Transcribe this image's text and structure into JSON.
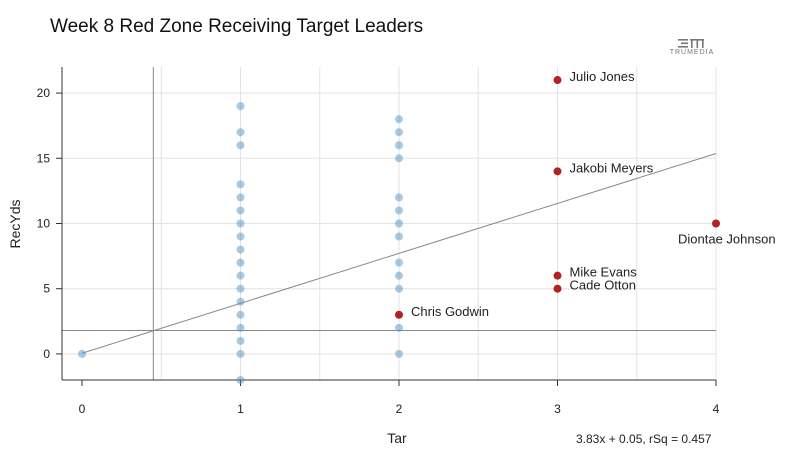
{
  "title": "Week 8 Red Zone Receiving Target Leaders",
  "brand": "TRUMEDIA",
  "fit_label": "3.83x + 0.05, rSq = 0.457",
  "colors": {
    "highlight": "#b22222",
    "other": "#4f93c6",
    "grid": "#e3e3e3",
    "axis": "#333333",
    "line": "#888888"
  },
  "chart_data": {
    "type": "scatter",
    "title": "Week 8 Red Zone Receiving Target Leaders",
    "xlabel": "Tar",
    "ylabel": "RecYds",
    "xlim": [
      0,
      4
    ],
    "ylim": [
      -2,
      22
    ],
    "x_ticks": [
      0,
      1,
      2,
      3,
      4
    ],
    "y_ticks": [
      0,
      5,
      10,
      15,
      20
    ],
    "grid": true,
    "regression": {
      "slope": 3.83,
      "intercept": 0.05,
      "rsq": 0.457,
      "label": "3.83x + 0.05, rSq = 0.457"
    },
    "mean_x": 0.45,
    "mean_y": 1.8,
    "highlighted": [
      {
        "name": "Julio Jones",
        "x": 3,
        "y": 21
      },
      {
        "name": "Jakobi Meyers",
        "x": 3,
        "y": 14
      },
      {
        "name": "Diontae Johnson",
        "x": 4,
        "y": 10
      },
      {
        "name": "Mike Evans",
        "x": 3,
        "y": 6
      },
      {
        "name": "Cade Otton",
        "x": 3,
        "y": 5
      },
      {
        "name": "Chris Godwin",
        "x": 2,
        "y": 3
      }
    ],
    "others": [
      {
        "x": 0,
        "y": 0
      },
      {
        "x": 1,
        "y": 19
      },
      {
        "x": 1,
        "y": 17
      },
      {
        "x": 1,
        "y": 16
      },
      {
        "x": 1,
        "y": 13
      },
      {
        "x": 1,
        "y": 12
      },
      {
        "x": 1,
        "y": 11
      },
      {
        "x": 1,
        "y": 10
      },
      {
        "x": 1,
        "y": 9
      },
      {
        "x": 1,
        "y": 8
      },
      {
        "x": 1,
        "y": 7
      },
      {
        "x": 1,
        "y": 6
      },
      {
        "x": 1,
        "y": 5
      },
      {
        "x": 1,
        "y": 4
      },
      {
        "x": 1,
        "y": 3
      },
      {
        "x": 1,
        "y": 2
      },
      {
        "x": 1,
        "y": 1
      },
      {
        "x": 1,
        "y": 0
      },
      {
        "x": 1,
        "y": -2
      },
      {
        "x": 2,
        "y": 18
      },
      {
        "x": 2,
        "y": 17
      },
      {
        "x": 2,
        "y": 16
      },
      {
        "x": 2,
        "y": 15
      },
      {
        "x": 2,
        "y": 12
      },
      {
        "x": 2,
        "y": 11
      },
      {
        "x": 2,
        "y": 10
      },
      {
        "x": 2,
        "y": 9
      },
      {
        "x": 2,
        "y": 7
      },
      {
        "x": 2,
        "y": 6
      },
      {
        "x": 2,
        "y": 5
      },
      {
        "x": 2,
        "y": 2
      },
      {
        "x": 2,
        "y": 0
      }
    ]
  }
}
